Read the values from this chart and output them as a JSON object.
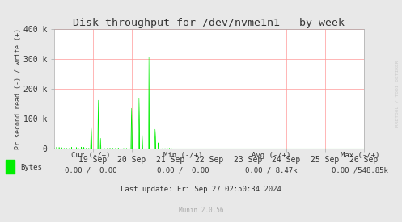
{
  "title": "Disk throughput for /dev/nvme1n1 - by week",
  "ylabel": "Pr second read (-) / write (+)",
  "background_color": "#e8e8e8",
  "plot_bg_color": "#ffffff",
  "grid_color": "#ff9999",
  "line_color": "#00ee00",
  "ylim": [
    0,
    400000
  ],
  "yticks": [
    0,
    100000,
    200000,
    300000,
    400000
  ],
  "ytick_labels": [
    "0",
    "100 k",
    "200 k",
    "300 k",
    "400 k"
  ],
  "xstart": 1726617600,
  "xend": 1727308800,
  "xtick_labels": [
    "19 Sep",
    "20 Sep",
    "21 Sep",
    "22 Sep",
    "23 Sep",
    "24 Sep",
    "25 Sep",
    "26 Sep"
  ],
  "watermark": "RRDTOOL / TOBI OETIKER",
  "legend_label": "Bytes",
  "cur_neg": "0.00",
  "cur_pos": "0.00",
  "min_neg": "0.00",
  "min_pos": "0.00",
  "avg_neg": "0.00",
  "avg_pos": "8.47k",
  "max_neg": "0.00",
  "max_pos": "548.85k",
  "last_update": "Last update: Fri Sep 27 02:50:34 2024",
  "munin_version": "Munin 2.0.56",
  "title_color": "#333333",
  "text_color": "#333333",
  "watermark_color": "#cccccc"
}
